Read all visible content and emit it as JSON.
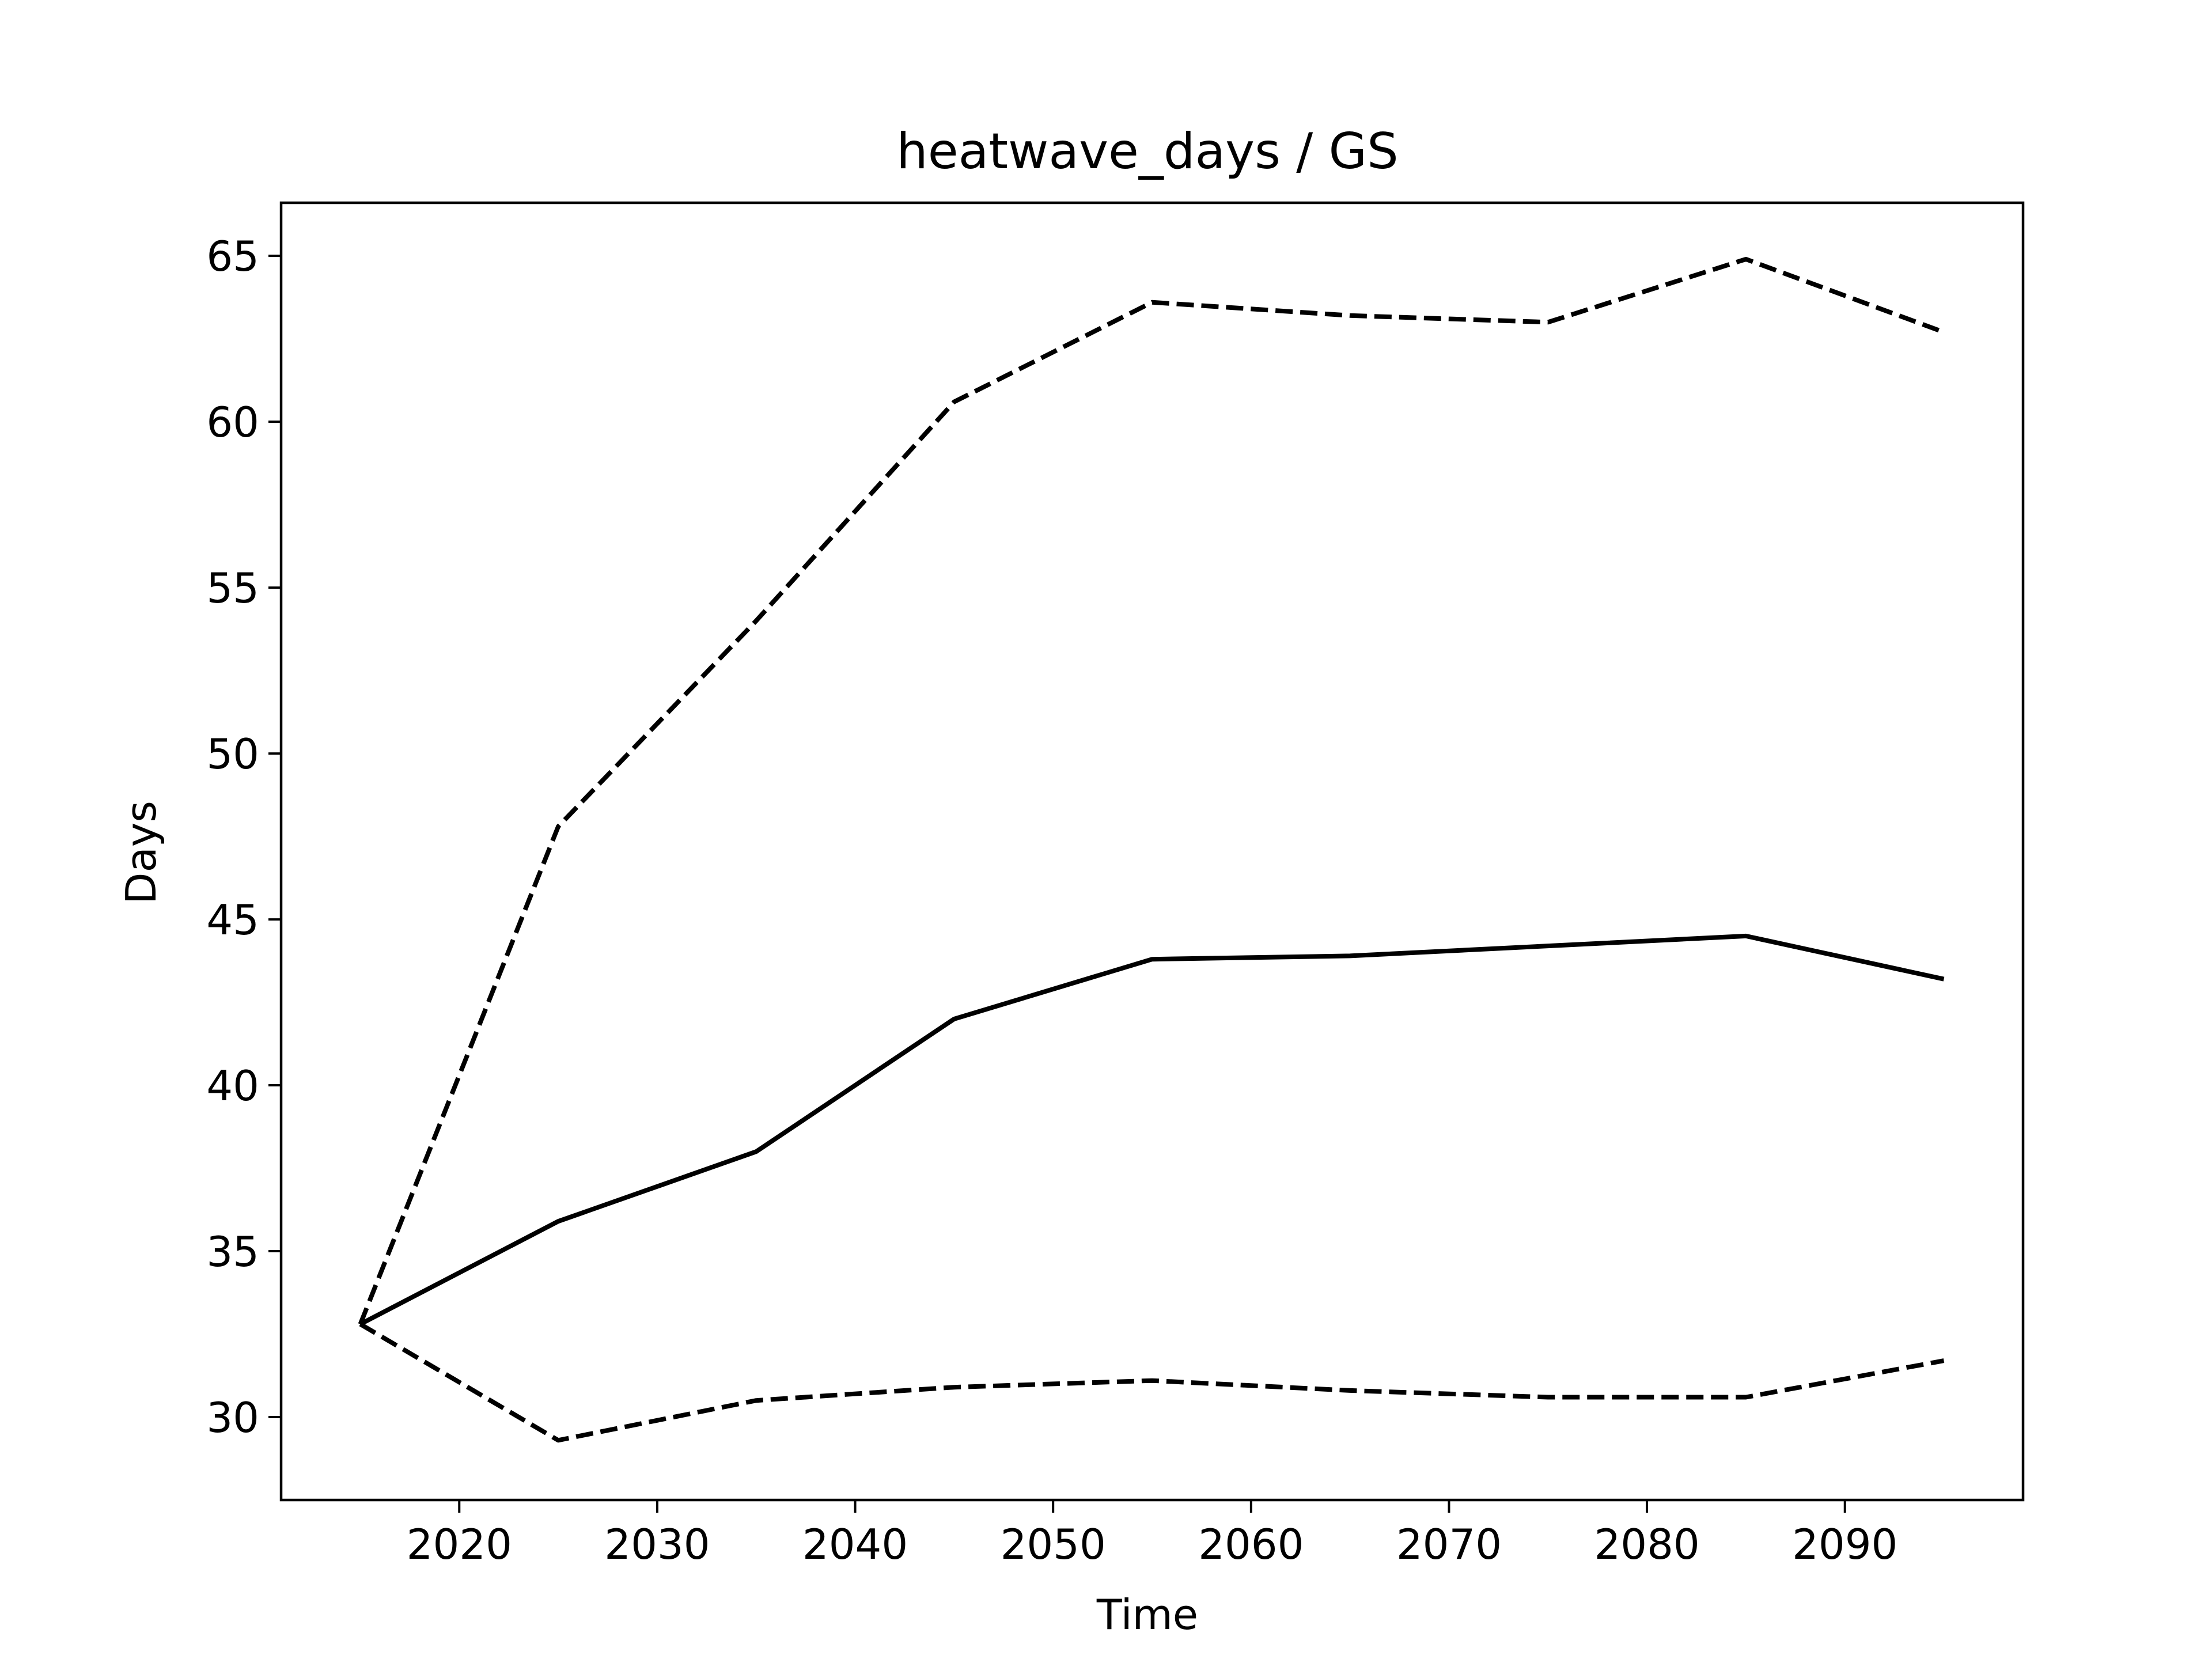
{
  "chart_data": {
    "type": "line",
    "title": "heatwave_days / GS",
    "xlabel": "Time",
    "ylabel": "Days",
    "x": [
      2015,
      2025,
      2035,
      2045,
      2055,
      2065,
      2075,
      2085,
      2095
    ],
    "series": [
      {
        "style": "solid",
        "color": "#000000",
        "values": [
          32.8,
          35.9,
          38.0,
          42.0,
          43.8,
          43.9,
          44.2,
          44.5,
          43.2
        ]
      },
      {
        "style": "dashed",
        "color": "#000000",
        "values": [
          32.8,
          47.8,
          54.0,
          60.6,
          63.6,
          63.2,
          63.0,
          64.9,
          62.7
        ]
      },
      {
        "style": "dashed",
        "color": "#000000",
        "values": [
          32.8,
          29.3,
          30.5,
          30.9,
          31.1,
          30.8,
          30.6,
          30.6,
          31.7
        ]
      }
    ],
    "xlim": [
      2011,
      2099
    ],
    "ylim": [
      27.5,
      66.6
    ],
    "xticks": [
      2020,
      2030,
      2040,
      2050,
      2060,
      2070,
      2080,
      2090
    ],
    "yticks": [
      30,
      35,
      40,
      45,
      50,
      55,
      60,
      65
    ],
    "grid": false,
    "legend": "none"
  }
}
